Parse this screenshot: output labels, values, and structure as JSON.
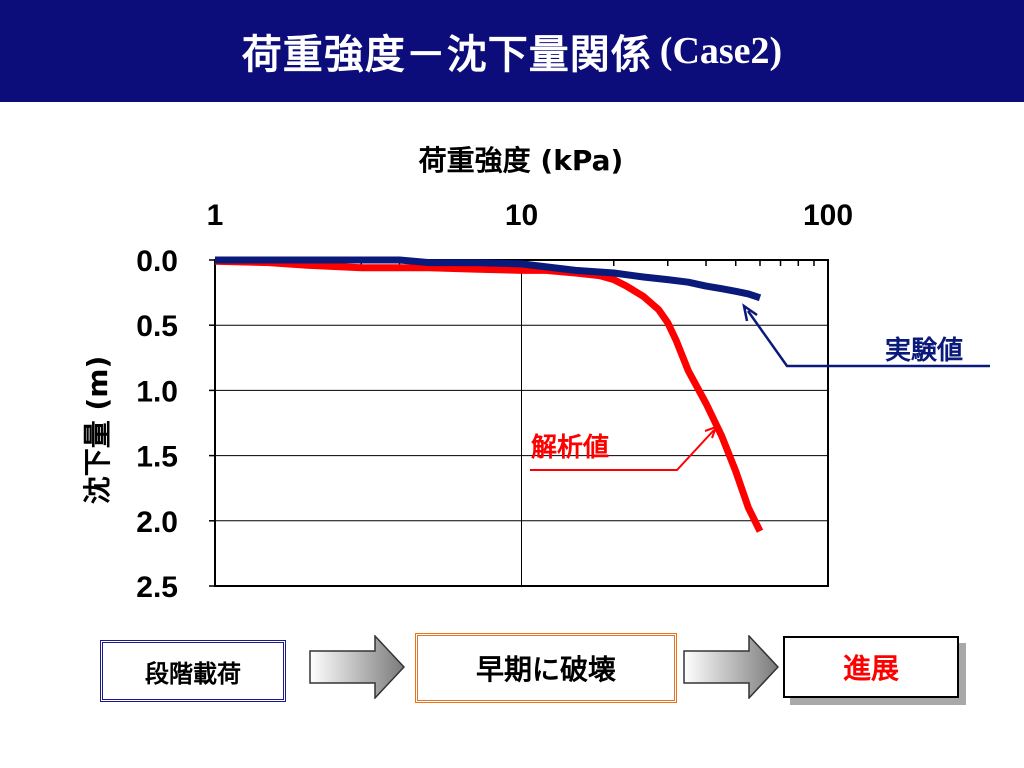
{
  "slide": {
    "title": "荷重強度－沈下量関係",
    "title_case": "(Case2)",
    "bg_color": "#ffffff",
    "title_bar_color": "#0c0c7a"
  },
  "chart_data": {
    "type": "line",
    "xlabel": "荷重強度 (kPa)",
    "ylabel": "沈下量 (m)",
    "x_scale": "log",
    "x_axis_position": "top",
    "xlim": [
      1,
      100
    ],
    "x_tick_labels": [
      "1",
      "10",
      "100"
    ],
    "ylim": [
      0,
      2.5
    ],
    "y_inverted": true,
    "y_tick_labels": [
      "0.0",
      "0.5",
      "1.0",
      "1.5",
      "2.0",
      "2.5"
    ],
    "grid": true,
    "series": [
      {
        "name": "実験値",
        "color": "#0a1a7a",
        "x": [
          1,
          1.5,
          2,
          3,
          4,
          5,
          7,
          10,
          15,
          20,
          25,
          30,
          35,
          40,
          45,
          50,
          55,
          60
        ],
        "y": [
          0.0,
          0.0,
          0.0,
          0.0,
          0.0,
          0.02,
          0.02,
          0.03,
          0.08,
          0.1,
          0.13,
          0.15,
          0.17,
          0.2,
          0.22,
          0.24,
          0.26,
          0.29
        ]
      },
      {
        "name": "解析値",
        "color": "#ff0000",
        "x": [
          1,
          1.5,
          2,
          3,
          4,
          5,
          7,
          10,
          12,
          15,
          18,
          20,
          22,
          25,
          28,
          30,
          32,
          35,
          40,
          45,
          50,
          55,
          60
        ],
        "y": [
          0.01,
          0.02,
          0.04,
          0.06,
          0.06,
          0.06,
          0.07,
          0.08,
          0.08,
          0.1,
          0.12,
          0.15,
          0.2,
          0.28,
          0.38,
          0.48,
          0.62,
          0.85,
          1.1,
          1.35,
          1.62,
          1.9,
          2.08
        ]
      }
    ],
    "annotations": [
      {
        "text": "実験値",
        "color": "#0a1a7a",
        "points_to_series": "実験値"
      },
      {
        "text": "解析値",
        "color": "#ff0000",
        "points_to_series": "解析値"
      }
    ]
  },
  "flow": {
    "steps": [
      {
        "label": "段階載荷"
      },
      {
        "label": "早期に破壊"
      },
      {
        "label": "進展"
      }
    ]
  }
}
